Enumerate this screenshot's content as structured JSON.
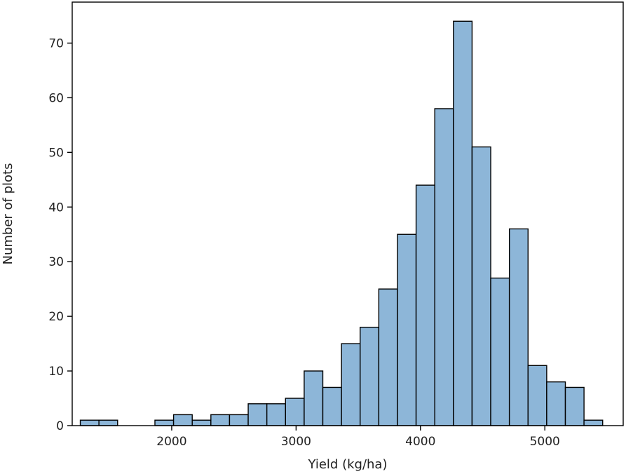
{
  "chart_data": {
    "type": "bar",
    "xlabel": "Yield (kg/ha)",
    "ylabel": "Number of plots",
    "bar_color": "#8db6d8",
    "edge_color": "#000000",
    "xlim": [
      1200,
      5630
    ],
    "ylim": [
      0,
      77.5
    ],
    "xticks": [
      2000,
      3000,
      4000,
      5000
    ],
    "yticks": [
      0,
      10,
      20,
      30,
      40,
      50,
      60,
      70
    ],
    "bins": [
      1265,
      1415,
      1565,
      1715,
      1865,
      2015,
      2165,
      2315,
      2465,
      2615,
      2765,
      2915,
      3065,
      3215,
      3365,
      3515,
      3665,
      3815,
      3965,
      4115,
      4265,
      4415,
      4565,
      4715,
      4865,
      5015,
      5165,
      5315,
      5465
    ],
    "bin_width": 150,
    "counts": [
      1,
      1,
      0,
      0,
      1,
      2,
      1,
      2,
      2,
      4,
      4,
      5,
      10,
      7,
      15,
      18,
      25,
      35,
      44,
      58,
      74,
      51,
      27,
      36,
      11,
      8,
      7,
      1
    ],
    "grid": false,
    "legend": "none"
  }
}
